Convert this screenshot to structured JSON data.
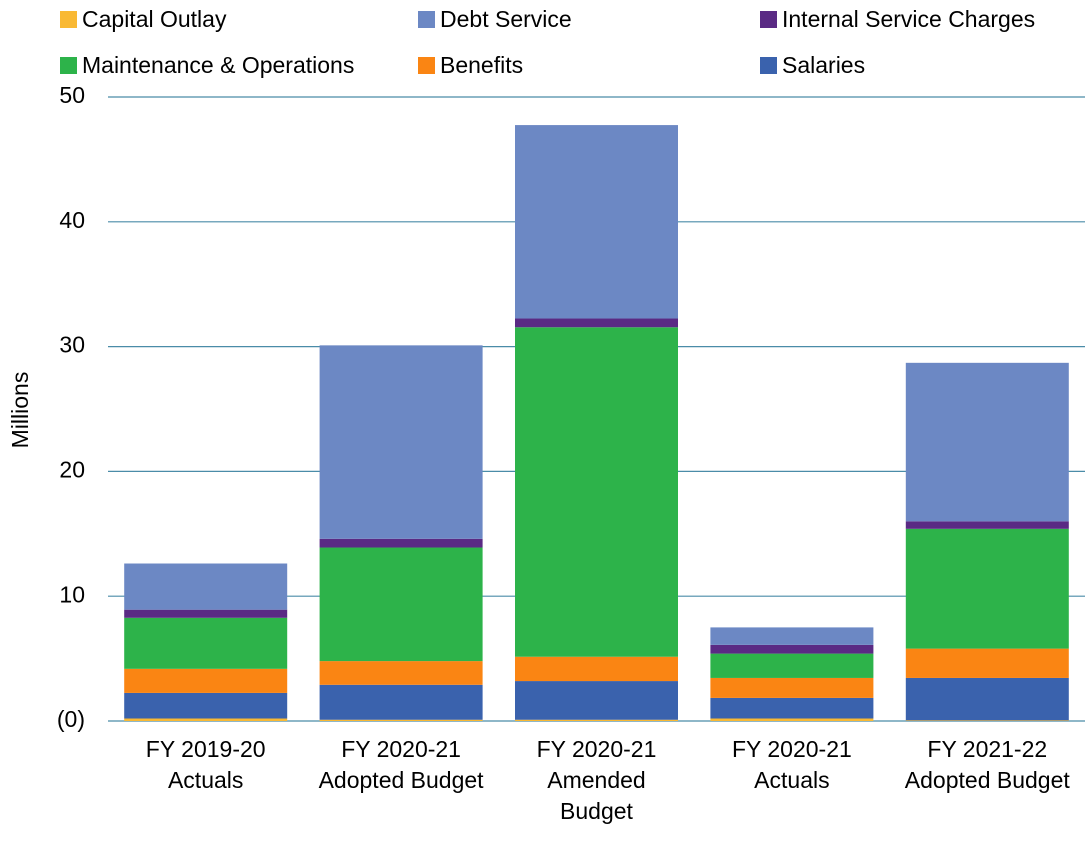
{
  "chart_data": {
    "type": "stacked_bar",
    "y_label": "Millions",
    "categories": [
      "FY 2019-20 Actuals",
      "FY 2020-21 Adopted Budget",
      "FY 2020-21 Amended Budget",
      "FY 2020-21 Actuals",
      "FY 2021-22 Adopted Budget"
    ],
    "series": [
      {
        "name": "Capital Outlay",
        "color": "#f9b934",
        "values": [
          0.2,
          0.1,
          0.1,
          0.2,
          0.05
        ]
      },
      {
        "name": "Salaries",
        "color": "#3a62ad",
        "values": [
          2.05,
          2.8,
          3.1,
          1.65,
          3.4
        ]
      },
      {
        "name": "Benefits",
        "color": "#fa8513",
        "values": [
          1.93,
          1.9,
          1.95,
          1.6,
          2.35
        ]
      },
      {
        "name": "Maintenance & Operations",
        "color": "#2db34a",
        "values": [
          4.09,
          9.1,
          26.4,
          1.95,
          9.6
        ]
      },
      {
        "name": "Internal Service Charges",
        "color": "#5a2a84",
        "values": [
          0.65,
          0.7,
          0.7,
          0.7,
          0.6
        ]
      },
      {
        "name": "Debt Service",
        "color": "#6c88c4",
        "values": [
          3.7,
          15.5,
          15.5,
          1.4,
          12.7
        ]
      }
    ],
    "ylim": [
      0,
      50
    ],
    "yticks": [
      {
        "value": 0,
        "label": "(0)"
      },
      10,
      20,
      30,
      40,
      50
    ],
    "grid": true,
    "legend": "top"
  }
}
